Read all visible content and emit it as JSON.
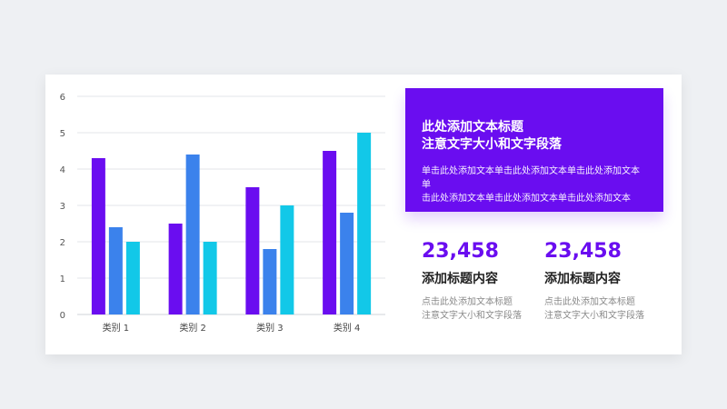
{
  "chart_data": {
    "type": "bar",
    "categories": [
      "类别 1",
      "类别 2",
      "类别 3",
      "类别 4"
    ],
    "series": [
      {
        "values": [
          4.3,
          2.5,
          3.5,
          4.5
        ],
        "color": "#6a0df0"
      },
      {
        "values": [
          2.4,
          4.4,
          1.8,
          2.8
        ],
        "color": "#3b82ec"
      },
      {
        "values": [
          2.0,
          2.0,
          3.0,
          5.0
        ],
        "color": "#12c8e8"
      }
    ],
    "ylim": [
      0,
      6
    ],
    "yticks": [
      "0",
      "1",
      "2",
      "3",
      "4",
      "5",
      "6"
    ],
    "grid": true
  },
  "banner": {
    "title_line1": "此处添加文本标题",
    "title_line2": "注意文字大小和文字段落",
    "body_line1": "单击此处添加文本单击此处添加文本单击此处添加文本单",
    "body_line2": "击此处添加文本单击此处添加文本单击此处添加文本"
  },
  "stats": [
    {
      "value": "23,458",
      "label": "添加标题内容",
      "desc_line1": "点击此处添加文本标题",
      "desc_line2": "注意文字大小和文字段落"
    },
    {
      "value": "23,458",
      "label": "添加标题内容",
      "desc_line1": "点击此处添加文本标题",
      "desc_line2": "注意文字大小和文字段落"
    }
  ]
}
